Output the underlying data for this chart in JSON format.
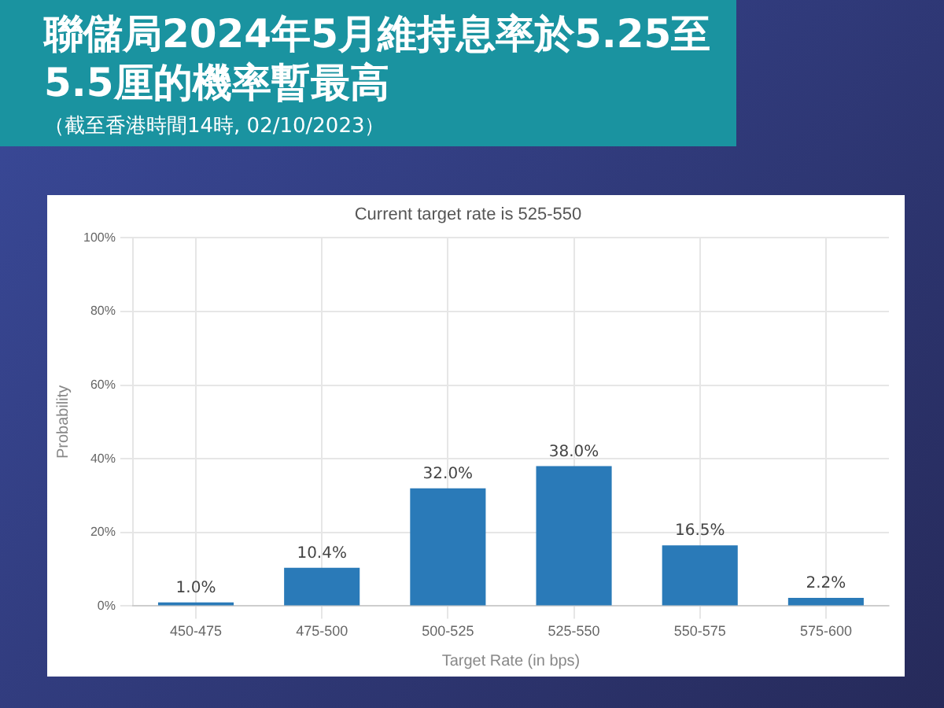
{
  "chart_data": {
    "type": "bar",
    "title": "聯儲局2024年5月維持息率於5.25至5.5厘的機率暫最高",
    "subtitle": "Current target rate is 525-550",
    "xlabel": "Target Rate (in bps)",
    "ylabel": "Probability",
    "annotations": [
      "（截至香港時間14時, 02/10/2023）"
    ],
    "categories": [
      "450-475",
      "475-500",
      "500-525",
      "525-550",
      "550-575",
      "575-600"
    ],
    "values": [
      1.0,
      10.4,
      32.0,
      38.0,
      16.5,
      2.2
    ],
    "value_labels": [
      "1.0%",
      "10.4%",
      "32.0%",
      "38.0%",
      "16.5%",
      "2.2%"
    ],
    "color": "#2a7ab8",
    "ylim": [
      0,
      100
    ],
    "yticks": [
      {
        "value": 0,
        "label": "0%"
      },
      {
        "value": 20,
        "label": "20%"
      },
      {
        "value": 40,
        "label": "40%"
      },
      {
        "value": 60,
        "label": "60%"
      },
      {
        "value": 80,
        "label": "80%"
      },
      {
        "value": 100,
        "label": "100%"
      }
    ],
    "grid": true,
    "legend": false
  }
}
